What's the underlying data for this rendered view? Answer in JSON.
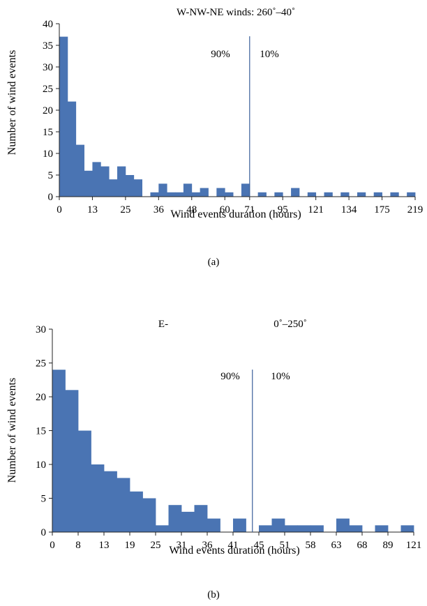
{
  "chart_data": [
    {
      "type": "bar",
      "panel_label": "(a)",
      "title": "W-NW-NE winds: 260˚–40˚",
      "title_parts": [],
      "xlabel": "Wind events duration (hours)",
      "ylabel": "Number of wind events",
      "ylim": [
        0,
        40
      ],
      "yticks": [
        0,
        5,
        10,
        15,
        20,
        25,
        30,
        35,
        40
      ],
      "grid": false,
      "legend": "none",
      "bar_color": "#4a74b3",
      "values": [
        37,
        22,
        12,
        6,
        8,
        7,
        4,
        7,
        5,
        4,
        0,
        1,
        3,
        1,
        1,
        3,
        1,
        2,
        0,
        2,
        1,
        0,
        3,
        0,
        1,
        0,
        1,
        0,
        2,
        0,
        1,
        0,
        1,
        0,
        1,
        0,
        1,
        0,
        1,
        0,
        1,
        0,
        1
      ],
      "xtick_labels": [
        {
          "after_bar": 0,
          "label": "0"
        },
        {
          "after_bar": 4,
          "label": "13"
        },
        {
          "after_bar": 8,
          "label": "25"
        },
        {
          "after_bar": 12,
          "label": "36"
        },
        {
          "after_bar": 16,
          "label": "48"
        },
        {
          "after_bar": 20,
          "label": "60"
        },
        {
          "after_bar": 23,
          "label": "71"
        },
        {
          "after_bar": 27,
          "label": "95"
        },
        {
          "after_bar": 31,
          "label": "121"
        },
        {
          "after_bar": 35,
          "label": "134"
        },
        {
          "after_bar": 39,
          "label": "175"
        },
        {
          "after_bar": 43,
          "label": "219"
        }
      ],
      "threshold_after_bar": 23,
      "threshold_left_label": "90%",
      "threshold_right_label": "10%"
    },
    {
      "type": "bar",
      "panel_label": "(b)",
      "title": "",
      "title_parts": [
        "E-",
        "0˚–250˚"
      ],
      "xlabel": "Wind events duration (hours)",
      "ylabel": "Number of wind events",
      "ylim": [
        0,
        30
      ],
      "yticks": [
        0,
        5,
        10,
        15,
        20,
        25,
        30
      ],
      "grid": false,
      "legend": "none",
      "bar_color": "#4a74b3",
      "values": [
        24,
        21,
        15,
        10,
        9,
        8,
        6,
        5,
        1,
        4,
        3,
        4,
        2,
        0,
        2,
        0,
        1,
        2,
        1,
        1,
        1,
        0,
        2,
        1,
        0,
        1,
        0,
        1
      ],
      "xtick_labels": [
        {
          "after_bar": 0,
          "label": "0"
        },
        {
          "after_bar": 2,
          "label": "8"
        },
        {
          "after_bar": 4,
          "label": "13"
        },
        {
          "after_bar": 6,
          "label": "19"
        },
        {
          "after_bar": 8,
          "label": "25"
        },
        {
          "after_bar": 10,
          "label": "31"
        },
        {
          "after_bar": 12,
          "label": "36"
        },
        {
          "after_bar": 14,
          "label": "41"
        },
        {
          "after_bar": 16,
          "label": "45"
        },
        {
          "after_bar": 18,
          "label": "51"
        },
        {
          "after_bar": 20,
          "label": "58"
        },
        {
          "after_bar": 22,
          "label": "63"
        },
        {
          "after_bar": 24,
          "label": "68"
        },
        {
          "after_bar": 26,
          "label": "89"
        },
        {
          "after_bar": 28,
          "label": "121"
        }
      ],
      "threshold_after_bar": 15.5,
      "threshold_left_label": "90%",
      "threshold_right_label": "10%"
    }
  ]
}
